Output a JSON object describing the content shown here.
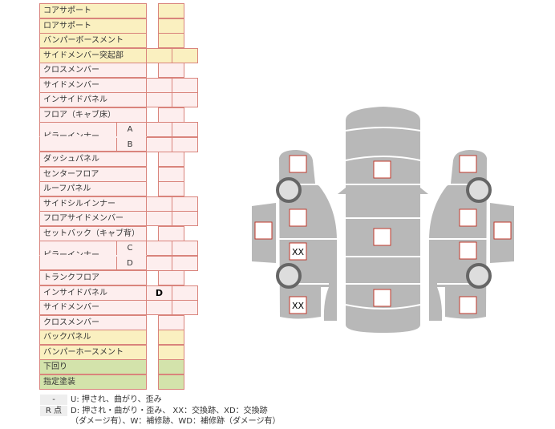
{
  "colors": {
    "yellow": "#faf0c0",
    "pink": "#fdeeee",
    "green": "#d3e3ab",
    "border": "#d9847c",
    "car": "#b8b8b8",
    "mark": "#c0392b"
  },
  "rows": [
    {
      "label": "コアサポート",
      "color": "yellow",
      "cols": 1
    },
    {
      "label": "ロアサポート",
      "color": "yellow",
      "cols": 1
    },
    {
      "label": "バンパーボースメント",
      "color": "yellow",
      "cols": 1
    },
    {
      "label": "サイドメンバー突起部",
      "color": "yellow",
      "cols": 2
    },
    {
      "label": "クロスメンバー",
      "color": "pink",
      "cols": 1
    },
    {
      "label": "サイドメンバー",
      "color": "pink",
      "cols": 2
    },
    {
      "label": "インサイドパネル",
      "color": "pink",
      "cols": 2
    },
    {
      "label": "フロア（キャブ床）",
      "color": "pink",
      "cols": 1
    },
    {
      "label": "ピラーインナー",
      "sub": "A",
      "color": "pink",
      "cols": 2
    },
    {
      "label": "",
      "sub": "B",
      "color": "pink",
      "cols": 2
    },
    {
      "label": "ダッシュパネル",
      "color": "pink",
      "cols": 1
    },
    {
      "label": "センターフロア",
      "color": "pink",
      "cols": 1
    },
    {
      "label": "ルーフパネル",
      "color": "pink",
      "cols": 1
    },
    {
      "label": "サイドシルインナー",
      "color": "pink",
      "cols": 2
    },
    {
      "label": "フロアサイドメンバー",
      "color": "pink",
      "cols": 2
    },
    {
      "label": "セットバック（キャブ背）",
      "color": "pink",
      "cols": 1
    },
    {
      "label": "ピラーインナー",
      "sub": "C",
      "color": "pink",
      "cols": 2
    },
    {
      "label": "",
      "sub": "D",
      "color": "pink",
      "cols": 2
    },
    {
      "label": "トランクフロア",
      "color": "pink",
      "cols": 1
    },
    {
      "label": "インサイドパネル",
      "color": "pink",
      "cols": 2,
      "values": [
        "D",
        ""
      ]
    },
    {
      "label": "サイドメンバー",
      "color": "pink",
      "cols": 2
    },
    {
      "label": "クロスメンバー",
      "color": "pink",
      "cols": 1
    },
    {
      "label": "バックパネル",
      "color": "yellow",
      "cols": 1
    },
    {
      "label": "バンパーホースメント",
      "color": "yellow",
      "cols": 1
    },
    {
      "label": "下回り",
      "color": "green",
      "cols": 1
    },
    {
      "label": "指定塗装",
      "color": "green",
      "cols": 1
    }
  ],
  "legend": [
    {
      "key": "-",
      "text": "U: 押され、曲がり、歪み"
    },
    {
      "key": "R 点",
      "text": "D: 押され・曲がり・歪み、 XX：交換跡、XD：交換跡"
    },
    {
      "key": "",
      "text": "（ダメージ有）、W：補修跡、WD：補修跡（ダメージ有）"
    }
  ],
  "car_marks": {
    "left_front": "",
    "left_mid": "",
    "left_rear_door": "XX",
    "left_rear": "XX",
    "left_mirror": "",
    "roof_front": "",
    "roof_mid": "",
    "roof_rear": "",
    "right_front": "",
    "right_mid": "",
    "right_rear_door": "",
    "right_rear": "",
    "right_mirror": ""
  }
}
